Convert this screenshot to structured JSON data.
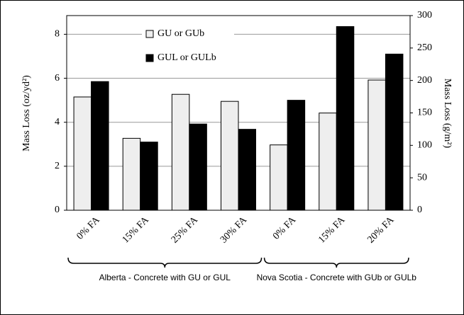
{
  "chart_data": {
    "type": "bar",
    "categories": [
      "0% FA",
      "15% FA",
      "25% FA",
      "30% FA",
      "0% FA",
      "15% FA",
      "20% FA"
    ],
    "groups": [
      {
        "label": "Alberta - Concrete with GU or GUL",
        "count": 4
      },
      {
        "label": "Nova Scotia - Concrete with GUb or GULb",
        "count": 3
      }
    ],
    "series": [
      {
        "name": "GU or GUb",
        "color": "#eeeeee",
        "values": [
          5.15,
          3.27,
          5.27,
          4.95,
          2.97,
          4.42,
          5.92
        ]
      },
      {
        "name": "GUL or GULb",
        "color": "#000000",
        "values": [
          5.85,
          3.1,
          3.92,
          3.68,
          5.0,
          8.35,
          7.1
        ]
      }
    ],
    "y_label": "Mass Loss (oz/yd²)",
    "y2_label": "Mass Loss (g/m²)",
    "ylim": [
      0,
      8.85
    ],
    "yticks": [
      0,
      2,
      4,
      6,
      8
    ],
    "y2lim": [
      0,
      300
    ],
    "y2ticks": [
      0,
      50,
      100,
      150,
      200,
      250,
      300
    ],
    "grid": true
  }
}
